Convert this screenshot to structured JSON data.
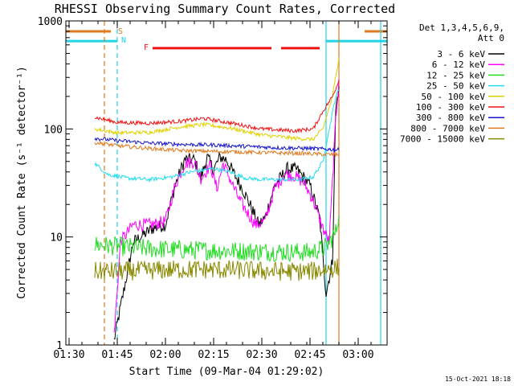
{
  "chart_data": {
    "type": "line",
    "title": "RHESSI Observing Summary Count Rates, Corrected",
    "xlabel": "Start Time (09-Mar-04 01:29:02)",
    "ylabel": "Corrected Count Rate (s⁻¹ detector⁻¹)",
    "y_scale": "log",
    "ylim": [
      1,
      1000
    ],
    "xlim": [
      "01:29",
      "03:09"
    ],
    "x_ticks": [
      "01:30",
      "01:45",
      "02:00",
      "02:15",
      "02:30",
      "02:45",
      "03:00"
    ],
    "y_ticks": [
      "1",
      "10",
      "100",
      "1000"
    ],
    "grid": false,
    "legend": {
      "placement": "right",
      "header": [
        "Det 1,3,4,5,6,9,",
        "Att 0"
      ]
    },
    "timestamp": "15-Oct-2021 18:18",
    "flag_labels": {
      "saa": "S",
      "night": "N",
      "flare": "F"
    },
    "flags": {
      "saa": [
        [
          "01:29",
          "01:43"
        ],
        [
          "03:02",
          "03:09"
        ]
      ],
      "night": [
        [
          "01:29",
          "01:45"
        ],
        [
          "02:50",
          "03:09"
        ]
      ],
      "flare": [
        [
          "01:56",
          "02:33"
        ],
        [
          "02:36",
          "02:48"
        ]
      ]
    },
    "verticals": [
      {
        "time": "01:41",
        "color": "#e07a1f",
        "style": "dashed"
      },
      {
        "time": "01:45",
        "color": "#22d3e6",
        "style": "dashed"
      },
      {
        "time": "02:50",
        "color": "#22d3e6",
        "style": "solid"
      },
      {
        "time": "02:54",
        "color": "#e07a1f",
        "style": "solid"
      },
      {
        "time": "03:07",
        "color": "#22d3e6",
        "style": "solid"
      }
    ],
    "series": [
      {
        "name": "3 - 6 keV",
        "color": "#000000",
        "points": [
          [
            "01:44",
            1.1
          ],
          [
            "01:50",
            9
          ],
          [
            "01:56",
            12
          ],
          [
            "02:00",
            13
          ],
          [
            "02:03",
            30
          ],
          [
            "02:06",
            52
          ],
          [
            "02:09",
            52
          ],
          [
            "02:11",
            35
          ],
          [
            "02:13",
            55
          ],
          [
            "02:15",
            42
          ],
          [
            "02:17",
            55
          ],
          [
            "02:19",
            52
          ],
          [
            "02:21",
            40
          ],
          [
            "02:24",
            28
          ],
          [
            "02:27",
            18
          ],
          [
            "02:29",
            13
          ],
          [
            "02:31",
            15
          ],
          [
            "02:34",
            30
          ],
          [
            "02:38",
            43
          ],
          [
            "02:41",
            42
          ],
          [
            "02:45",
            30
          ],
          [
            "02:48",
            15
          ],
          [
            "02:50",
            3
          ],
          [
            "02:52",
            6
          ],
          [
            "02:53",
            150
          ],
          [
            "02:54",
            250
          ]
        ]
      },
      {
        "name": "6 - 12 keV",
        "color": "#ff00ff",
        "points": [
          [
            "01:44",
            1.2
          ],
          [
            "01:46",
            9
          ],
          [
            "01:50",
            13
          ],
          [
            "01:56",
            13
          ],
          [
            "02:00",
            14
          ],
          [
            "02:03",
            30
          ],
          [
            "02:06",
            48
          ],
          [
            "02:09",
            50
          ],
          [
            "02:11",
            35
          ],
          [
            "02:14",
            46
          ],
          [
            "02:16",
            28
          ],
          [
            "02:18",
            48
          ],
          [
            "02:20",
            35
          ],
          [
            "02:23",
            22
          ],
          [
            "02:26",
            16
          ],
          [
            "02:28",
            13
          ],
          [
            "02:31",
            14
          ],
          [
            "02:34",
            28
          ],
          [
            "02:37",
            38
          ],
          [
            "02:40",
            37
          ],
          [
            "02:43",
            32
          ],
          [
            "02:46",
            22
          ],
          [
            "02:49",
            12
          ],
          [
            "02:51",
            9
          ],
          [
            "02:53",
            120
          ],
          [
            "02:54",
            290
          ]
        ]
      },
      {
        "name": "12 - 25 keV",
        "color": "#22dd22",
        "points": [
          [
            "01:38",
            8.5
          ],
          [
            "01:45",
            8.2
          ],
          [
            "01:55",
            7.8
          ],
          [
            "02:05",
            7.6
          ],
          [
            "02:15",
            7.5
          ],
          [
            "02:25",
            7.4
          ],
          [
            "02:35",
            7.3
          ],
          [
            "02:45",
            7.2
          ],
          [
            "02:50",
            8
          ],
          [
            "02:53",
            11
          ],
          [
            "02:54",
            16
          ]
        ]
      },
      {
        "name": "25 - 50 keV",
        "color": "#22ddee",
        "points": [
          [
            "01:38",
            48
          ],
          [
            "01:42",
            38
          ],
          [
            "01:48",
            35
          ],
          [
            "01:55",
            34
          ],
          [
            "02:02",
            36
          ],
          [
            "02:08",
            40
          ],
          [
            "02:15",
            43
          ],
          [
            "02:20",
            40
          ],
          [
            "02:25",
            35
          ],
          [
            "02:30",
            34
          ],
          [
            "02:36",
            34
          ],
          [
            "02:42",
            34
          ],
          [
            "02:46",
            36
          ],
          [
            "02:49",
            50
          ],
          [
            "02:51",
            100
          ],
          [
            "02:53",
            200
          ],
          [
            "02:54",
            230
          ]
        ]
      },
      {
        "name": "50 - 100 keV",
        "color": "#e0d000",
        "points": [
          [
            "01:38",
            100
          ],
          [
            "01:45",
            92
          ],
          [
            "01:55",
            93
          ],
          [
            "02:05",
            105
          ],
          [
            "02:12",
            110
          ],
          [
            "02:20",
            102
          ],
          [
            "02:30",
            88
          ],
          [
            "02:40",
            82
          ],
          [
            "02:46",
            80
          ],
          [
            "02:49",
            100
          ],
          [
            "02:52",
            200
          ],
          [
            "02:54",
            460
          ]
        ]
      },
      {
        "name": "100 - 300 keV",
        "color": "#ee1111",
        "points": [
          [
            "01:38",
            128
          ],
          [
            "01:45",
            115
          ],
          [
            "01:55",
            113
          ],
          [
            "02:05",
            118
          ],
          [
            "02:12",
            125
          ],
          [
            "02:20",
            114
          ],
          [
            "02:30",
            100
          ],
          [
            "02:40",
            96
          ],
          [
            "02:46",
            100
          ],
          [
            "02:49",
            145
          ],
          [
            "02:52",
            200
          ],
          [
            "02:54",
            280
          ]
        ]
      },
      {
        "name": "300 - 800 keV",
        "color": "#1515cc",
        "points": [
          [
            "01:38",
            82
          ],
          [
            "01:45",
            78
          ],
          [
            "01:55",
            74
          ],
          [
            "02:05",
            72
          ],
          [
            "02:15",
            71
          ],
          [
            "02:25",
            69
          ],
          [
            "02:35",
            67
          ],
          [
            "02:45",
            66
          ],
          [
            "02:50",
            65
          ],
          [
            "02:54",
            64
          ]
        ]
      },
      {
        "name": "800 - 7000 keV",
        "color": "#e07a1f",
        "points": [
          [
            "01:38",
            75
          ],
          [
            "01:45",
            70
          ],
          [
            "01:55",
            66
          ],
          [
            "02:05",
            63
          ],
          [
            "02:15",
            62
          ],
          [
            "02:25",
            61
          ],
          [
            "02:35",
            60
          ],
          [
            "02:45",
            59
          ],
          [
            "02:50",
            58
          ],
          [
            "02:54",
            58
          ]
        ]
      },
      {
        "name": "7000 - 15000 keV",
        "color": "#888800",
        "points": [
          [
            "01:38",
            4.8
          ],
          [
            "01:45",
            4.8
          ],
          [
            "01:55",
            4.9
          ],
          [
            "02:05",
            5.0
          ],
          [
            "02:15",
            5.0
          ],
          [
            "02:25",
            4.9
          ],
          [
            "02:35",
            4.8
          ],
          [
            "02:45",
            4.8
          ],
          [
            "02:50",
            5.0
          ],
          [
            "02:54",
            5.2
          ]
        ]
      }
    ]
  }
}
